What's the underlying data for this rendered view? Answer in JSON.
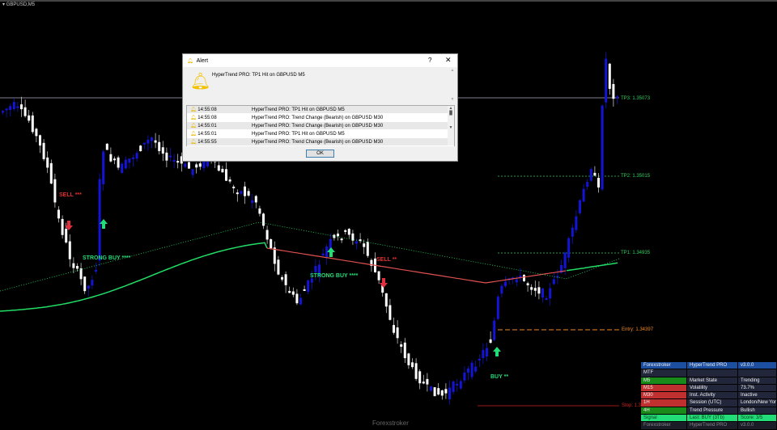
{
  "chart": {
    "symbol": "GBPUSD,M5",
    "footer": "Forexstroker",
    "colors": {
      "bull": "#1414d8",
      "bear": "#ffffff",
      "ma_up": "#22dd66",
      "ma_down": "#e05050",
      "tp": "#2fcf5f",
      "entry": "#f08a20",
      "stop": "#d02020"
    },
    "levels": {
      "tp3": "TP3: 1.35073",
      "tp2": "TP2: 1.35015",
      "tp1": "TP1: 1.34935",
      "entry": "Entry: 1.34397",
      "stop": "Stop: 1.34"
    },
    "signals": [
      {
        "label": "SELL ***",
        "type": "sell"
      },
      {
        "label": "STRONG BUY ****",
        "type": "buy"
      },
      {
        "label": "STRONG BUY ****",
        "type": "buy"
      },
      {
        "label": "SELL **",
        "type": "sell"
      },
      {
        "label": "BUY **",
        "type": "buy"
      }
    ]
  },
  "alert": {
    "title": "Alert",
    "help": "?",
    "close": "✕",
    "message": "HyperTrend PRO: TP1 Hit on GBPUSD M5",
    "rows": [
      {
        "time": "14:55:08",
        "text": "HyperTrend PRO: TP1 Hit on GBPUSD M5"
      },
      {
        "time": "14:55:08",
        "text": "HyperTrend PRO: Trend Change (Bearish) on GBPUSD M30"
      },
      {
        "time": "14:55:01",
        "text": "HyperTrend PRO: Trend Change (Bearish) on GBPUSD M30"
      },
      {
        "time": "14:55:01",
        "text": "HyperTrend PRO: TP1 Hit on GBPUSD M5"
      },
      {
        "time": "14:55:55",
        "text": "HyperTrend PRO: Trend Change (Bearish) on GBPUSD M30"
      }
    ],
    "ok": "OK"
  },
  "panel": {
    "rows": [
      {
        "c": [
          "Forexstroker",
          "HyperTrend PRO",
          "v3.0.0"
        ],
        "bg": [
          "#1c4fa0",
          "#1c4fa0",
          "#1c4fa0"
        ]
      },
      {
        "c": [
          "MTF",
          "",
          ""
        ],
        "bg": [
          "#22263a",
          "#22263a",
          "#22263a"
        ]
      },
      {
        "c": [
          "M5",
          "Market State",
          "Trending"
        ],
        "bg": [
          "#1a8a1a",
          "#22263a",
          "#22263a"
        ]
      },
      {
        "c": [
          "M15",
          "Volatility",
          "73.7%"
        ],
        "bg": [
          "#c03030",
          "#22263a",
          "#22263a"
        ]
      },
      {
        "c": [
          "M30",
          "Inst. Activity",
          "Inactive"
        ],
        "bg": [
          "#c03030",
          "#22263a",
          "#22263a"
        ]
      },
      {
        "c": [
          "1H",
          "Session (UTC)",
          "London/New York"
        ],
        "bg": [
          "#c03030",
          "#22263a",
          "#22263a"
        ]
      },
      {
        "c": [
          "4H",
          "Trend Pressure",
          "Bullish"
        ],
        "bg": [
          "#1a8a1a",
          "#22263a",
          "#22263a"
        ]
      },
      {
        "c": [
          "Signal",
          "Last: BUY (3Tb)",
          "Score: 3/5"
        ],
        "bg": [
          "#22dd77",
          "#22dd77",
          "#22dd77"
        ]
      },
      {
        "c": [
          "Forexstroker",
          "HyperTrend PRO",
          "v3.0.0"
        ],
        "bg": [
          "#1a1c28",
          "#1a1c28",
          "#1a1c28"
        ]
      }
    ]
  }
}
